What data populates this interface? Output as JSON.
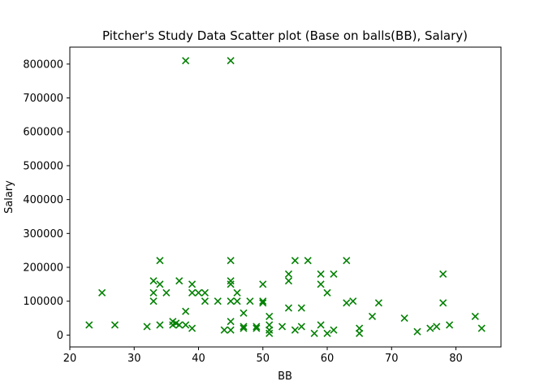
{
  "chart_data": {
    "type": "scatter",
    "title": "Pitcher's Study Data Scatter plot (Base on balls(BB), Salary)",
    "xlabel": "BB",
    "ylabel": "Salary",
    "xlim": [
      20,
      87
    ],
    "ylim": [
      -35000,
      850000
    ],
    "xticks": [
      20,
      30,
      40,
      50,
      60,
      70,
      80
    ],
    "yticks": [
      0,
      100000,
      200000,
      300000,
      400000,
      500000,
      600000,
      700000,
      800000
    ],
    "marker": "x",
    "color": "#008000",
    "grid": false,
    "points": [
      [
        23,
        30000
      ],
      [
        25,
        125000
      ],
      [
        27,
        30000
      ],
      [
        32,
        25000
      ],
      [
        33,
        160000
      ],
      [
        33,
        125000
      ],
      [
        33,
        100000
      ],
      [
        34,
        220000
      ],
      [
        34,
        150000
      ],
      [
        34,
        30000
      ],
      [
        35,
        125000
      ],
      [
        36,
        40000
      ],
      [
        36,
        30000
      ],
      [
        36.5,
        35000
      ],
      [
        37,
        160000
      ],
      [
        37,
        30000
      ],
      [
        38,
        810000
      ],
      [
        38,
        70000
      ],
      [
        38,
        30000
      ],
      [
        39,
        150000
      ],
      [
        39,
        125000
      ],
      [
        39,
        20000
      ],
      [
        40,
        125000
      ],
      [
        41,
        125000
      ],
      [
        41,
        100000
      ],
      [
        43,
        100000
      ],
      [
        44,
        15000
      ],
      [
        45,
        810000
      ],
      [
        45,
        220000
      ],
      [
        45,
        160000
      ],
      [
        45,
        150000
      ],
      [
        45,
        100000
      ],
      [
        45,
        40000
      ],
      [
        45,
        15000
      ],
      [
        46,
        125000
      ],
      [
        46,
        100000
      ],
      [
        47,
        65000
      ],
      [
        47,
        25000
      ],
      [
        47,
        20000
      ],
      [
        48,
        100000
      ],
      [
        49,
        25000
      ],
      [
        49,
        20000
      ],
      [
        50,
        150000
      ],
      [
        50,
        100000
      ],
      [
        50,
        95000
      ],
      [
        51,
        55000
      ],
      [
        51,
        30000
      ],
      [
        51,
        15000
      ],
      [
        51,
        5000
      ],
      [
        53,
        25000
      ],
      [
        54,
        180000
      ],
      [
        54,
        160000
      ],
      [
        54,
        80000
      ],
      [
        55,
        220000
      ],
      [
        55,
        15000
      ],
      [
        56,
        80000
      ],
      [
        56,
        25000
      ],
      [
        57,
        220000
      ],
      [
        58,
        5000
      ],
      [
        59,
        180000
      ],
      [
        59,
        150000
      ],
      [
        59,
        30000
      ],
      [
        60,
        125000
      ],
      [
        60,
        5000
      ],
      [
        61,
        180000
      ],
      [
        61,
        15000
      ],
      [
        63,
        220000
      ],
      [
        63,
        95000
      ],
      [
        64,
        100000
      ],
      [
        65,
        20000
      ],
      [
        65,
        5000
      ],
      [
        67,
        55000
      ],
      [
        68,
        95000
      ],
      [
        72,
        50000
      ],
      [
        74,
        10000
      ],
      [
        76,
        20000
      ],
      [
        77,
        25000
      ],
      [
        78,
        180000
      ],
      [
        78,
        95000
      ],
      [
        79,
        30000
      ],
      [
        83,
        55000
      ],
      [
        84,
        20000
      ]
    ]
  }
}
